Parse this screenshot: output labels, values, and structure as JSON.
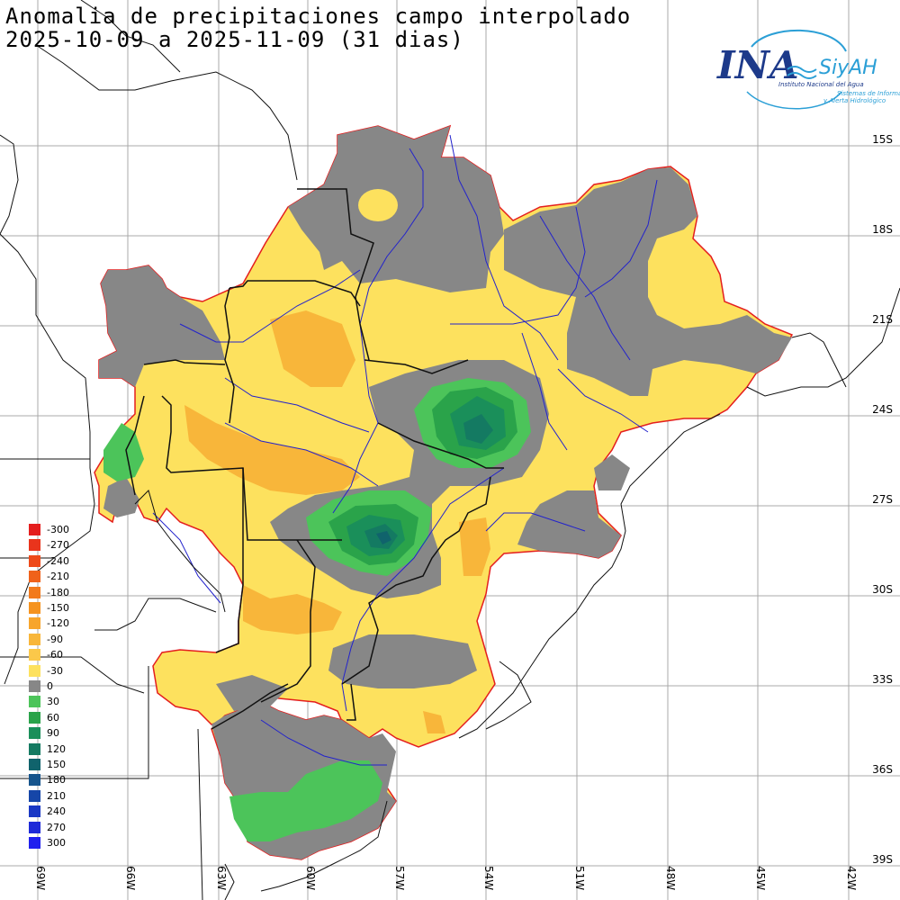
{
  "title_line1": "Anomalia de precipitaciones campo interpolado",
  "title_line2": "2025-10-09 a 2025-11-09 (31 dias)",
  "logo": {
    "brand": "INA",
    "brand2": "SiyAH",
    "line1": "Instituto Nacional del Agua",
    "line2": "Sistemas de Información",
    "line3": "y Alerta Hidrológico"
  },
  "lat_labels": [
    "15S",
    "18S",
    "21S",
    "24S",
    "27S",
    "30S",
    "33S",
    "36S",
    "39S"
  ],
  "lon_labels": [
    "69W",
    "66W",
    "63W",
    "60W",
    "57W",
    "54W",
    "51W",
    "48W",
    "45W",
    "42W"
  ],
  "legend": [
    {
      "label": "-300",
      "color": "#e41e1e"
    },
    {
      "label": "-270",
      "color": "#e9341c"
    },
    {
      "label": "-240",
      "color": "#ee4a1a"
    },
    {
      "label": "-210",
      "color": "#f0621a"
    },
    {
      "label": "-180",
      "color": "#f27a1c"
    },
    {
      "label": "-150",
      "color": "#f5931f"
    },
    {
      "label": "-120",
      "color": "#f7a52c"
    },
    {
      "label": "-90",
      "color": "#f8b63a"
    },
    {
      "label": "-60",
      "color": "#fbc84a"
    },
    {
      "label": "-30",
      "color": "#fde15e"
    },
    {
      "label": "0",
      "color": "#878787"
    },
    {
      "label": "30",
      "color": "#4cc45a"
    },
    {
      "label": "60",
      "color": "#2aa34a"
    },
    {
      "label": "90",
      "color": "#1a8f5a"
    },
    {
      "label": "120",
      "color": "#147a62"
    },
    {
      "label": "150",
      "color": "#10636c"
    },
    {
      "label": "180",
      "color": "#16548c"
    },
    {
      "label": "210",
      "color": "#1646a8"
    },
    {
      "label": "240",
      "color": "#1a38c4"
    },
    {
      "label": "270",
      "color": "#1e2ad8"
    },
    {
      "label": "300",
      "color": "#2020ee"
    }
  ],
  "colors": {
    "yellow": "#fde15e",
    "orange": "#f8b63a",
    "gray": "#878787",
    "green1": "#4cc45a",
    "green2": "#2aa34a",
    "green3": "#1a8f5a",
    "teal": "#147a62",
    "border": "#e41e1e",
    "river": "#2222cc",
    "grid": "#a8a8a8"
  }
}
